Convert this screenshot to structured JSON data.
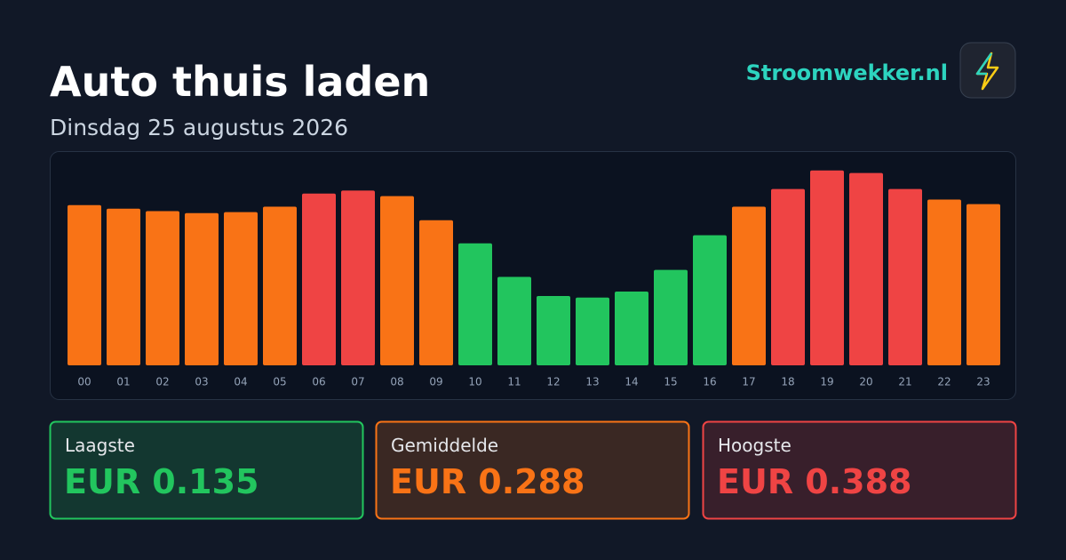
{
  "header": {
    "title": "Auto thuis laden",
    "subtitle": "Dinsdag 25 augustus 2026",
    "brand": "Stroomwekker.nl"
  },
  "chart_data": {
    "type": "bar",
    "categories": [
      "00",
      "01",
      "02",
      "03",
      "04",
      "05",
      "06",
      "07",
      "08",
      "09",
      "10",
      "11",
      "12",
      "13",
      "14",
      "15",
      "16",
      "17",
      "18",
      "19",
      "20",
      "21",
      "22",
      "23"
    ],
    "values": [
      0.319,
      0.312,
      0.307,
      0.303,
      0.305,
      0.316,
      0.342,
      0.348,
      0.337,
      0.289,
      0.243,
      0.176,
      0.138,
      0.135,
      0.147,
      0.19,
      0.259,
      0.316,
      0.351,
      0.388,
      0.383,
      0.351,
      0.33,
      0.321
    ],
    "colors": [
      "#f97316",
      "#f97316",
      "#f97316",
      "#f97316",
      "#f97316",
      "#f97316",
      "#ef4444",
      "#ef4444",
      "#f97316",
      "#f97316",
      "#22c55e",
      "#22c55e",
      "#22c55e",
      "#22c55e",
      "#22c55e",
      "#22c55e",
      "#22c55e",
      "#f97316",
      "#ef4444",
      "#ef4444",
      "#ef4444",
      "#ef4444",
      "#f97316",
      "#f97316"
    ],
    "ylim": [
      0,
      0.4
    ]
  },
  "stats": [
    {
      "label": "Laagste",
      "value": "EUR 0.135",
      "color": "#22c55e"
    },
    {
      "label": "Gemiddelde",
      "value": "EUR 0.288",
      "color": "#f97316"
    },
    {
      "label": "Hoogste",
      "value": "EUR 0.388",
      "color": "#ef4444"
    }
  ]
}
